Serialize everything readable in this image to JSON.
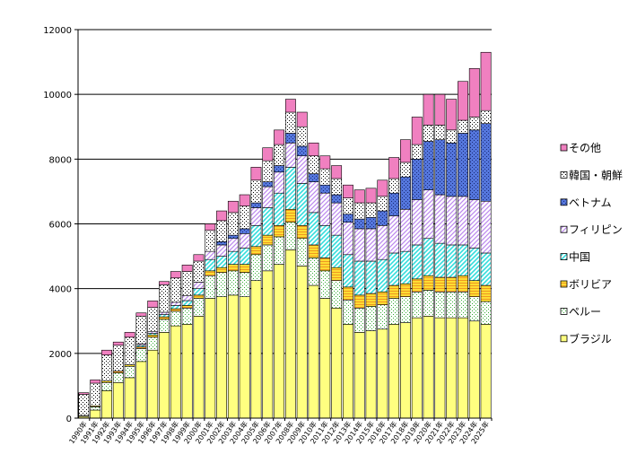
{
  "chart_data": {
    "type": "bar",
    "stacked": true,
    "title": "",
    "xlabel": "",
    "ylabel": "",
    "ylim": [
      0,
      12000
    ],
    "yticks": [
      0,
      2000,
      4000,
      6000,
      8000,
      10000,
      12000
    ],
    "grid": true,
    "legend_position": "right",
    "categories": [
      "1990年",
      "1991年",
      "1992年",
      "1993年",
      "1994年",
      "1995年",
      "1996年",
      "1997年",
      "1998年",
      "1999年",
      "2000年",
      "2001年",
      "2002年",
      "2003年",
      "2004年",
      "2005年",
      "2006年",
      "2007年",
      "2008年",
      "2009年",
      "2010年",
      "2011年",
      "2012年",
      "2013年",
      "2014年",
      "2015年",
      "2016年",
      "2017年",
      "2018年",
      "2019年",
      "2020年",
      "2021年",
      "2022年",
      "2023年",
      "2024年",
      "2025年"
    ],
    "series": [
      {
        "name": "ブラジル",
        "color": "#ffff80",
        "pattern": "solid",
        "values": [
          50,
          250,
          850,
          1100,
          1250,
          1750,
          2100,
          2650,
          2850,
          2900,
          3150,
          3700,
          3750,
          3800,
          3750,
          4250,
          4550,
          4750,
          5200,
          4700,
          4100,
          3700,
          3400,
          2900,
          2650,
          2700,
          2750,
          2900,
          2950,
          3100,
          3150,
          3100,
          3100,
          3100,
          3000,
          2900
        ]
      },
      {
        "name": "ペルー",
        "color": "#ffffff",
        "pattern": "dots-green",
        "values": [
          30,
          100,
          250,
          300,
          350,
          400,
          400,
          400,
          450,
          500,
          550,
          700,
          750,
          750,
          750,
          800,
          800,
          850,
          850,
          850,
          850,
          850,
          850,
          750,
          750,
          750,
          750,
          800,
          800,
          800,
          800,
          800,
          800,
          800,
          750,
          700
        ]
      },
      {
        "name": "ボリビア",
        "color": "#ffdd33",
        "pattern": "hlines-orange",
        "values": [
          5,
          30,
          50,
          50,
          50,
          50,
          70,
          80,
          80,
          80,
          100,
          150,
          150,
          200,
          250,
          250,
          300,
          350,
          400,
          400,
          400,
          400,
          400,
          400,
          400,
          400,
          400,
          400,
          400,
          400,
          450,
          450,
          450,
          500,
          500,
          500
        ]
      },
      {
        "name": "中国",
        "color": "#ffffff",
        "pattern": "diag-cyan",
        "values": [
          0,
          0,
          0,
          0,
          0,
          50,
          50,
          70,
          100,
          150,
          200,
          350,
          350,
          400,
          500,
          650,
          850,
          1000,
          1300,
          1300,
          1000,
          1000,
          1000,
          1000,
          1050,
          1000,
          1000,
          1000,
          1000,
          1050,
          1150,
          1050,
          1000,
          950,
          1000,
          1000
        ]
      },
      {
        "name": "フィリピン",
        "color": "#ffffff",
        "pattern": "diag-violet",
        "values": [
          0,
          0,
          0,
          0,
          0,
          50,
          50,
          70,
          100,
          150,
          200,
          250,
          350,
          400,
          450,
          550,
          650,
          650,
          750,
          850,
          950,
          1000,
          1000,
          1000,
          1000,
          1000,
          1050,
          1150,
          1300,
          1400,
          1500,
          1500,
          1500,
          1500,
          1500,
          1600
        ]
      },
      {
        "name": "ベトナム",
        "color": "#5577dd",
        "pattern": "dots-blue",
        "values": [
          0,
          0,
          0,
          0,
          0,
          0,
          0,
          0,
          0,
          0,
          0,
          0,
          100,
          100,
          150,
          150,
          150,
          200,
          300,
          300,
          250,
          250,
          250,
          250,
          300,
          350,
          450,
          700,
          1000,
          1250,
          1500,
          1700,
          1650,
          1950,
          2150,
          2400
        ]
      },
      {
        "name": "韓国・朝鮮",
        "color": "#ffffff",
        "pattern": "dots-black",
        "values": [
          650,
          700,
          800,
          800,
          850,
          850,
          750,
          850,
          750,
          750,
          650,
          650,
          650,
          700,
          700,
          700,
          650,
          650,
          650,
          600,
          550,
          500,
          500,
          500,
          500,
          450,
          450,
          450,
          450,
          450,
          500,
          450,
          400,
          400,
          400,
          400
        ]
      },
      {
        "name": "その他",
        "color": "#f080c0",
        "pattern": "solid",
        "values": [
          50,
          100,
          150,
          100,
          150,
          100,
          200,
          100,
          200,
          200,
          200,
          200,
          300,
          350,
          350,
          400,
          400,
          450,
          400,
          450,
          400,
          400,
          400,
          400,
          400,
          450,
          500,
          650,
          700,
          850,
          950,
          950,
          950,
          1200,
          1500,
          1800
        ]
      }
    ]
  }
}
